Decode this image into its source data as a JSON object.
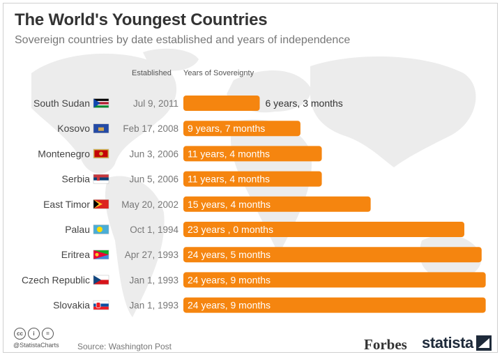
{
  "title": "The World's Youngest Countries",
  "subtitle": "Sovereign countries by date established and years of independence",
  "headers": {
    "established": "Established",
    "years": "Years of Sovereignty"
  },
  "colors": {
    "bar": "#f5850f",
    "title": "#333333",
    "text": "#555555",
    "map": "#ebebeb"
  },
  "footer": {
    "license_icons": [
      "cc-icon",
      "by-icon",
      "nd-icon"
    ],
    "license_glyphs": [
      "cc",
      "i",
      "="
    ],
    "handle": "@StatistaCharts",
    "source": "Source: Washington Post",
    "partner": "Forbes",
    "brand": "statista"
  },
  "chart_data": {
    "type": "bar",
    "orientation": "horizontal",
    "title": "The World's Youngest Countries",
    "subtitle": "Sovereign countries by date established and years of independence",
    "categories": [
      "South Sudan",
      "Kosovo",
      "Montenegro",
      "Serbia",
      "East Timor",
      "Palau",
      "Eritrea",
      "Czech Republic",
      "Slovakia"
    ],
    "established": [
      "Jul 9, 2011",
      "Feb 17, 2008",
      "Jun 3, 2006",
      "Jun 5, 2006",
      "May 20, 2002",
      "Oct 1, 1994",
      "Apr 27, 1993",
      "Jan 1, 1993",
      "Jan 1, 1993"
    ],
    "values": [
      6.25,
      9.583,
      11.333,
      11.333,
      15.333,
      23.0,
      24.417,
      24.75,
      24.75
    ],
    "value_labels": [
      "6 years, 3 months",
      "9 years, 7 months",
      "11 years, 4 months",
      "11 years, 4 months",
      "15 years, 4 months",
      "23 years , 0 months",
      "24 years, 5 months",
      "24 years, 9 months",
      "24 years, 9 months"
    ],
    "flags": [
      "south-sudan-flag-icon",
      "kosovo-flag-icon",
      "montenegro-flag-icon",
      "serbia-flag-icon",
      "east-timor-flag-icon",
      "palau-flag-icon",
      "eritrea-flag-icon",
      "czech-republic-flag-icon",
      "slovakia-flag-icon"
    ],
    "xlim": [
      0,
      25
    ],
    "grid": false,
    "legend": "none"
  }
}
